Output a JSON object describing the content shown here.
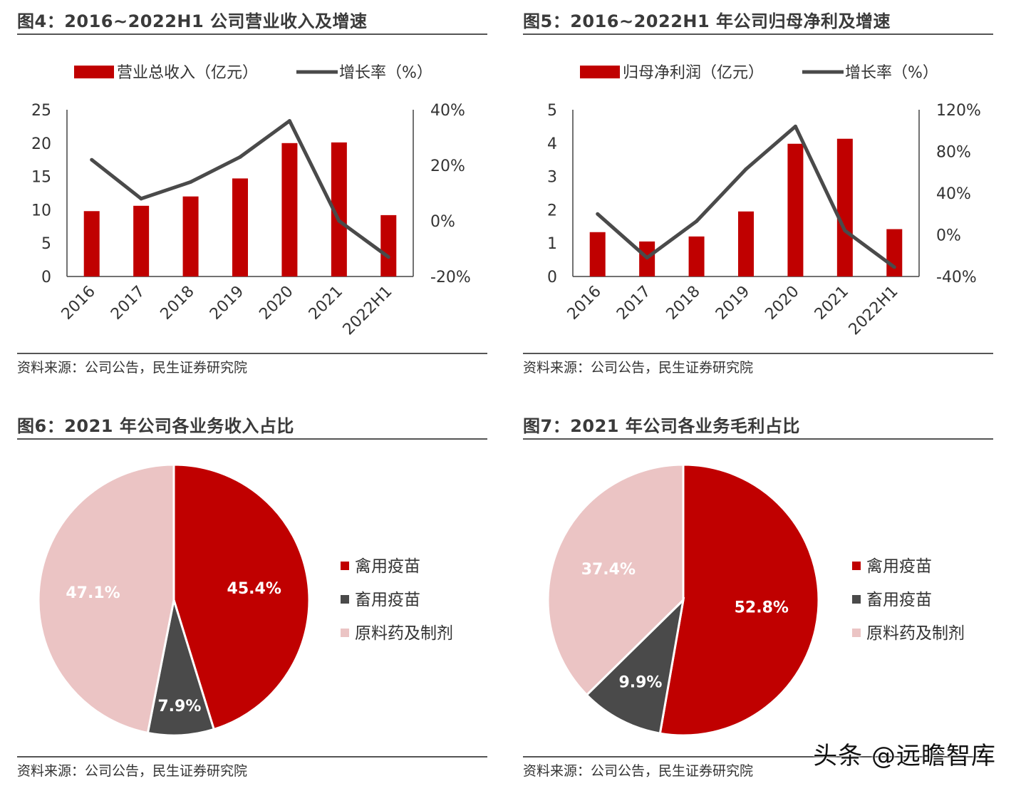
{
  "source": "资料来源：公司公告，民生证券研究院",
  "watermark": "头条 @远瞻智库",
  "colors": {
    "red": "#c00000",
    "dark": "#4a4a4a",
    "pink": "#ebc4c4",
    "axis": "#444444"
  },
  "chart_data": [
    {
      "type": "bar",
      "title": "图4：2016~2022H1 公司营业收入及增速",
      "categories": [
        "2016",
        "2017",
        "2018",
        "2019",
        "2020",
        "2021",
        "2022H1"
      ],
      "series": [
        {
          "name": "营业总收入（亿元）",
          "kind": "bar",
          "axis": "left",
          "values": [
            9.8,
            10.6,
            12.0,
            14.7,
            20.0,
            20.1,
            9.2
          ]
        },
        {
          "name": "增长率（%）",
          "kind": "line",
          "axis": "right",
          "values": [
            22,
            8,
            14,
            23,
            36,
            0,
            -13
          ]
        }
      ],
      "left_axis": {
        "min": 0,
        "max": 25,
        "step": 5,
        "ticks": [
          "0",
          "5",
          "10",
          "15",
          "20",
          "25"
        ]
      },
      "right_axis": {
        "min": -20,
        "max": 40,
        "step": 20,
        "ticks": [
          "-20%",
          "0%",
          "20%",
          "40%"
        ]
      },
      "legend": "top"
    },
    {
      "type": "bar",
      "title": "图5：2016~2022H1 年公司归母净利及增速",
      "categories": [
        "2016",
        "2017",
        "2018",
        "2019",
        "2020",
        "2021",
        "2022H1"
      ],
      "series": [
        {
          "name": "归母净利润（亿元）",
          "kind": "bar",
          "axis": "left",
          "values": [
            1.33,
            1.05,
            1.2,
            1.95,
            3.98,
            4.13,
            1.42
          ]
        },
        {
          "name": "增长率（%）",
          "kind": "line",
          "axis": "right",
          "values": [
            20,
            -22,
            13,
            63,
            104,
            4,
            -31
          ]
        }
      ],
      "left_axis": {
        "min": 0,
        "max": 5,
        "step": 1,
        "ticks": [
          "0",
          "1",
          "2",
          "3",
          "4",
          "5"
        ]
      },
      "right_axis": {
        "min": -40,
        "max": 120,
        "step": 40,
        "ticks": [
          "-40%",
          "0%",
          "40%",
          "80%",
          "120%"
        ]
      },
      "legend": "top"
    },
    {
      "type": "pie",
      "title": "图6：2021 年公司各业务收入占比",
      "slices": [
        {
          "name": "禽用疫苗",
          "value": 45.4,
          "label": "45.4%"
        },
        {
          "name": "畜用疫苗",
          "value": 7.9,
          "label": "7.9%"
        },
        {
          "name": "原料药及制剂",
          "value": 47.1,
          "label": "47.1%"
        }
      ],
      "legend": "right"
    },
    {
      "type": "pie",
      "title": "图7：2021 年公司各业务毛利占比",
      "slices": [
        {
          "name": "禽用疫苗",
          "value": 52.8,
          "label": "52.8%"
        },
        {
          "name": "畜用疫苗",
          "value": 9.9,
          "label": "9.9%"
        },
        {
          "name": "原料药及制剂",
          "value": 37.4,
          "label": "37.4%"
        }
      ],
      "legend": "right"
    }
  ]
}
